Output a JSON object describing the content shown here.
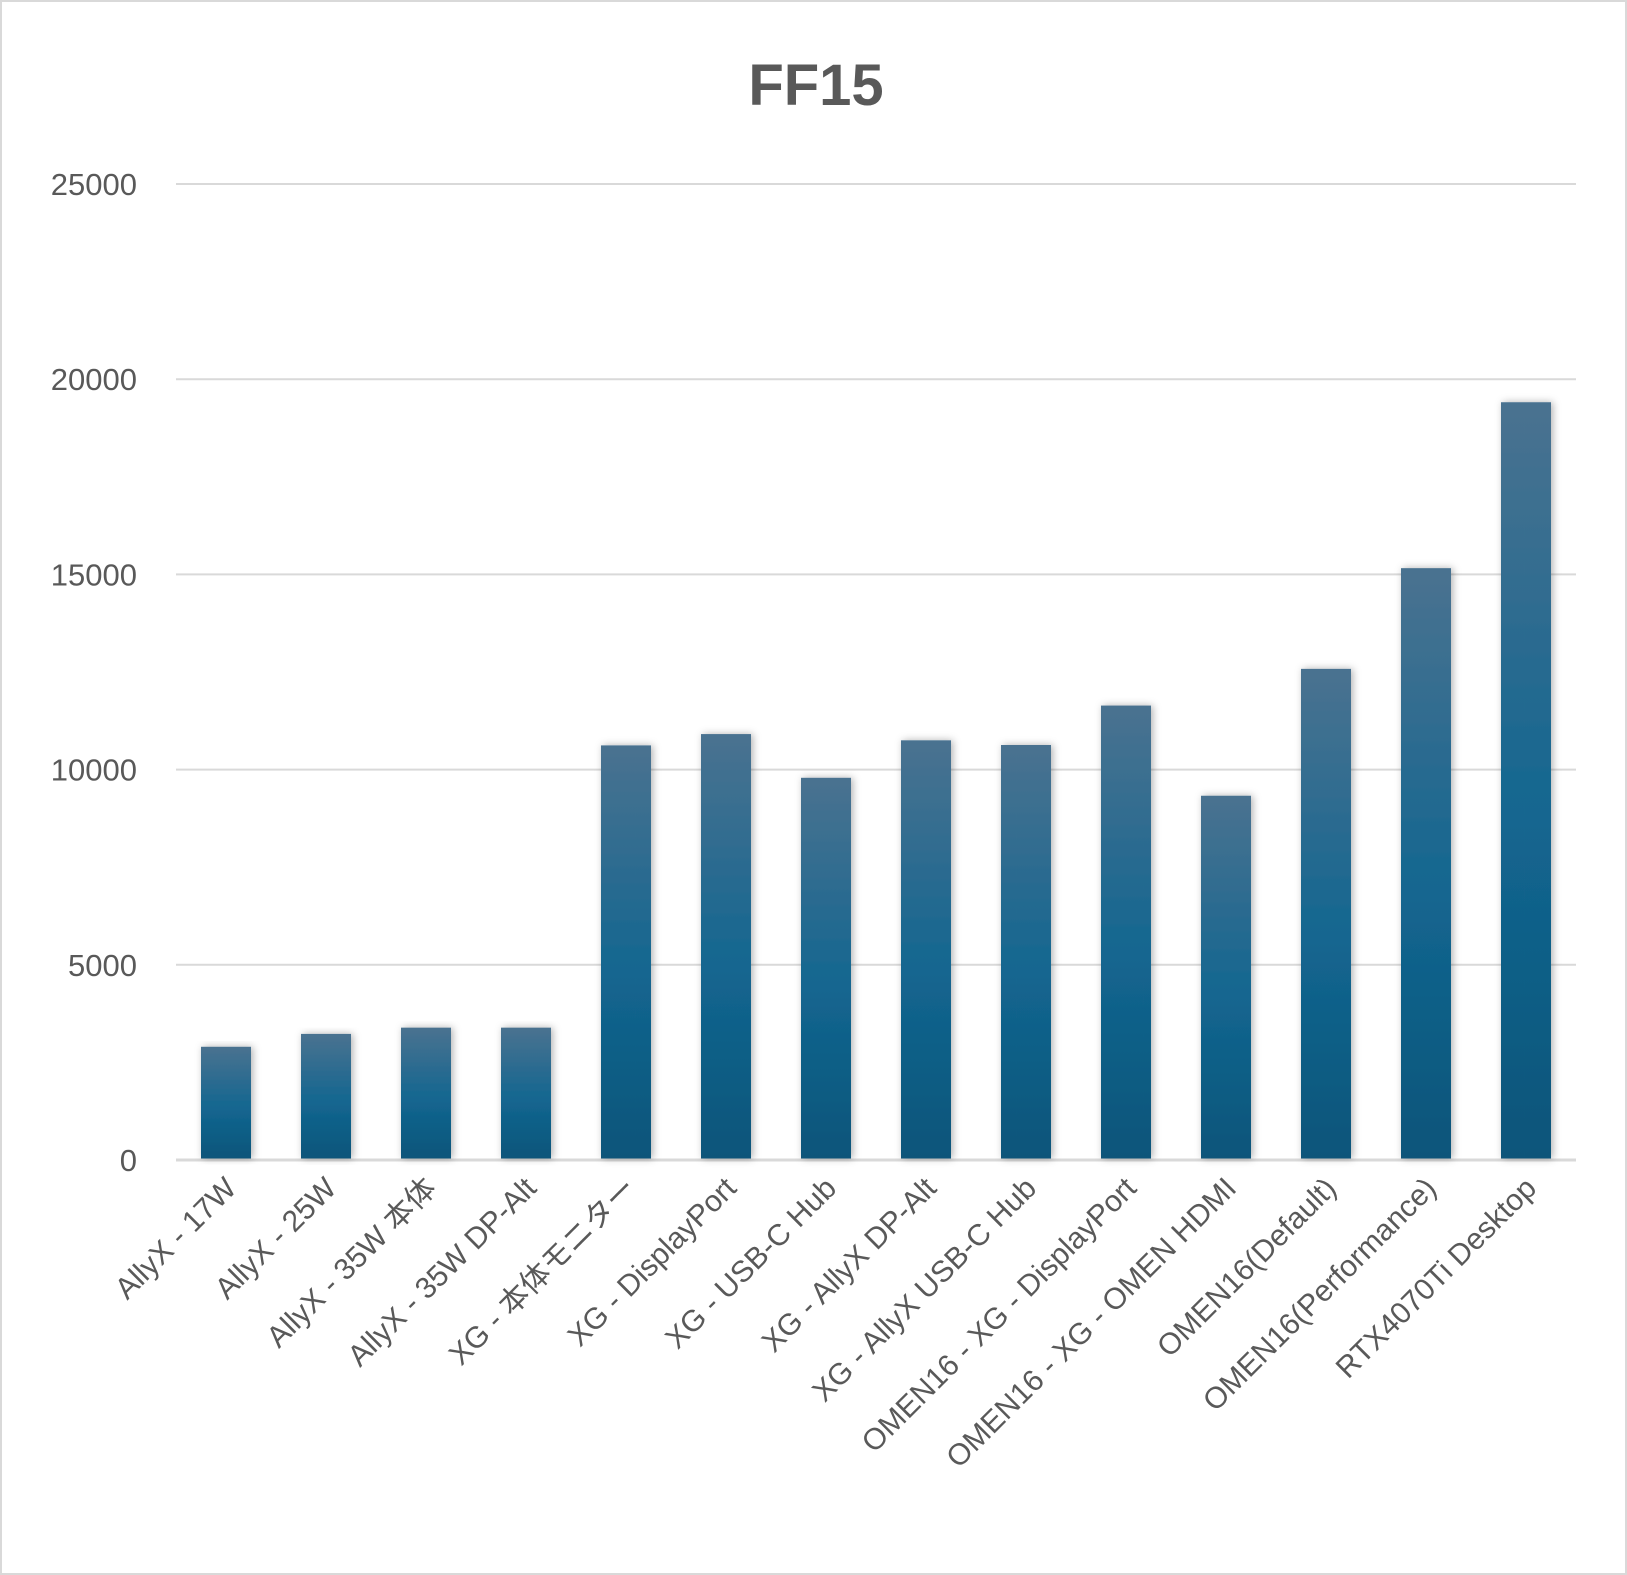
{
  "chart_data": {
    "type": "bar",
    "title": "FF15",
    "xlabel": "",
    "ylabel": "",
    "ylim": [
      0,
      25000
    ],
    "yticks": [
      0,
      5000,
      10000,
      15000,
      20000,
      25000
    ],
    "grid": true,
    "legend": "none",
    "bar_color_top": "#4a7290",
    "bar_color_bottom": "#0b557a",
    "categories": [
      "AllyX - 17W",
      "AllyX - 25W",
      "AllyX - 35W 本体",
      "AllyX - 35W DP-Alt",
      "XG - 本体モニター",
      "XG - DisplayPort",
      "XG - USB-C Hub",
      "XG - AllyX DP-Alt",
      "XG - AllyX USB-C Hub",
      "OMEN16 - XG - DisplayPort",
      "OMEN16 - XG - OMEN HDMI",
      "OMEN16(Default)",
      "OMEN16(Performance)",
      "RTX4070Ti Desktop"
    ],
    "values": [
      2900,
      3230,
      3390,
      3390,
      10620,
      10910,
      9790,
      10750,
      10630,
      11640,
      9330,
      12580,
      15160,
      19410
    ]
  }
}
